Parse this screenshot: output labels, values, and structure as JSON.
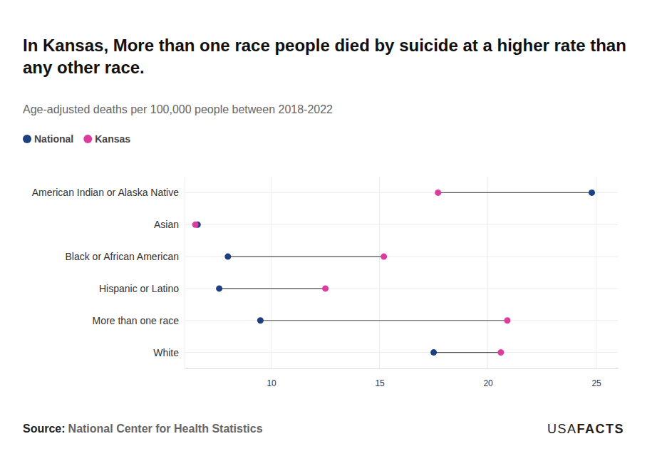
{
  "chart_data": {
    "type": "dumbbell",
    "title": "In Kansas, More than one race people died by suicide at a higher rate than any other race.",
    "subtitle": "Age-adjusted deaths per 100,000 people between 2018-2022",
    "categories": [
      "American Indian or Alaska Native",
      "Asian",
      "Black or African American",
      "Hispanic or Latino",
      "More than one race",
      "White"
    ],
    "series": [
      {
        "name": "National",
        "color": "#1f4080",
        "values": [
          24.8,
          6.6,
          8.0,
          7.6,
          9.5,
          17.5
        ]
      },
      {
        "name": "Kansas",
        "color": "#dd3c9f",
        "values": [
          17.7,
          6.5,
          15.2,
          12.5,
          20.9,
          20.6
        ]
      }
    ],
    "orientation": "horizontal",
    "xlim": [
      6,
      26
    ],
    "xticks": [
      10,
      15,
      20,
      25
    ],
    "grid": true,
    "legend": "top-left",
    "source_label": "Source:",
    "source": "National Center for Health Statistics",
    "logo": [
      "USA",
      "FACTS"
    ]
  }
}
